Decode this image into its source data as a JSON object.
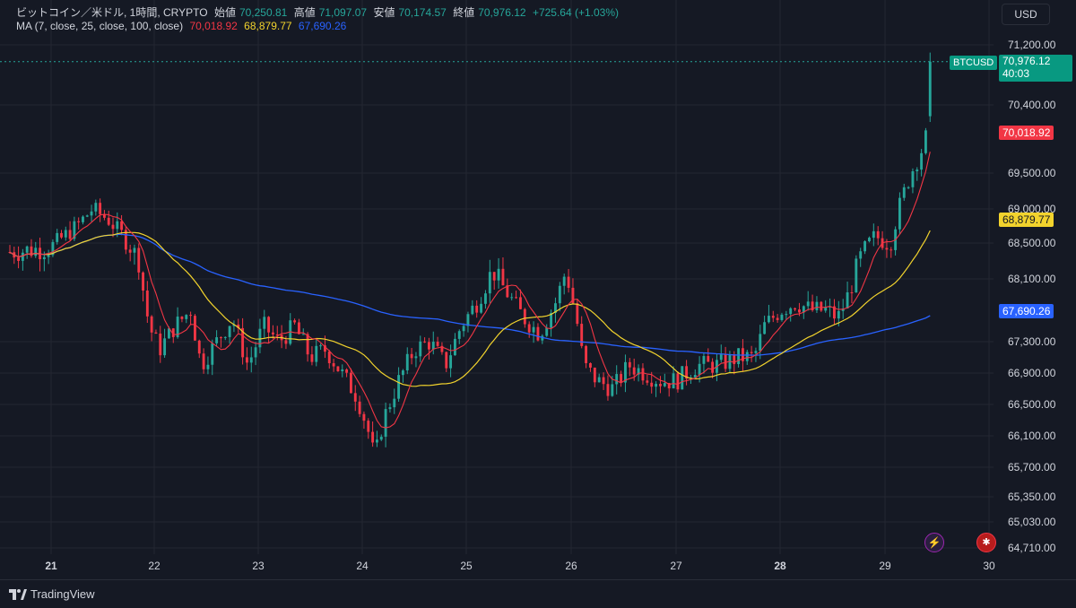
{
  "header": {
    "symbol_name": "ビットコイン／米ドル, 1時間, CRYPTO",
    "open_label": "始値",
    "open_value": "70,250.81",
    "high_label": "高値",
    "high_value": "71,097.07",
    "low_label": "安値",
    "low_value": "70,174.57",
    "close_label": "終値",
    "close_value": "70,976.12",
    "change": "+725.64 (+1.03%)",
    "ma_label": "MA (7, close, 25, close, 100, close)",
    "ma7_value": "70,018.92",
    "ma25_value": "68,879.77",
    "ma100_value": "67,690.26"
  },
  "toolbar": {
    "currency": "USD"
  },
  "tags": {
    "symbol": "BTCUSD",
    "last_price": "70,976.12",
    "countdown": "40:03",
    "ma7": "70,018.92",
    "ma25": "68,879.77",
    "ma100": "67,690.26"
  },
  "footer": {
    "brand": "TradingView"
  },
  "colors": {
    "up": "#26a69a",
    "down": "#f23645",
    "ma7": "#f23645",
    "ma25": "#f2d32d",
    "ma100": "#2962ff",
    "background": "#151924"
  },
  "icons": {
    "event": "lightning-icon",
    "flag": "us-flag-icon"
  },
  "chart_data": {
    "type": "candlestick",
    "title": "ビットコイン／米ドル, 1時間, CRYPTO",
    "y_ticks": [
      71200,
      70400,
      69500,
      69000,
      68500,
      68100,
      67300,
      66900,
      66500,
      66100,
      65700,
      65350,
      65030,
      64710
    ],
    "y_tick_labels": [
      "71,200.00",
      "70,400.00",
      "69,500.00",
      "69,000.00",
      "68,500.00",
      "68,100.00",
      "67,300.00",
      "66,900.00",
      "66,500.00",
      "66,100.00",
      "65,700.00",
      "65,350.00",
      "65,030.00",
      "64,710.00"
    ],
    "x_ticks": [
      "21",
      "22",
      "23",
      "24",
      "25",
      "26",
      "27",
      "28",
      "29",
      "30"
    ],
    "x_tick_bold": [
      true,
      false,
      false,
      false,
      false,
      false,
      false,
      true,
      false,
      false
    ],
    "ylim": [
      64600,
      71500
    ],
    "xlim": [
      20.6,
      30.2
    ],
    "last_price": 70976.12,
    "anchors": [
      [
        20.6,
        68400
      ],
      [
        21.0,
        68450
      ],
      [
        21.25,
        68750
      ],
      [
        21.4,
        69000
      ],
      [
        21.55,
        68850
      ],
      [
        21.7,
        68600
      ],
      [
        21.85,
        68300
      ],
      [
        21.95,
        67500
      ],
      [
        22.05,
        67200
      ],
      [
        22.2,
        67500
      ],
      [
        22.35,
        67700
      ],
      [
        22.45,
        67000
      ],
      [
        22.6,
        67300
      ],
      [
        22.75,
        67600
      ],
      [
        22.9,
        67000
      ],
      [
        23.05,
        67500
      ],
      [
        23.2,
        67300
      ],
      [
        23.35,
        67500
      ],
      [
        23.5,
        67100
      ],
      [
        23.65,
        67200
      ],
      [
        23.8,
        66900
      ],
      [
        23.95,
        66600
      ],
      [
        24.05,
        66200
      ],
      [
        24.12,
        65800
      ],
      [
        24.2,
        66300
      ],
      [
        24.35,
        66800
      ],
      [
        24.5,
        67200
      ],
      [
        24.65,
        67300
      ],
      [
        24.8,
        67000
      ],
      [
        24.95,
        67500
      ],
      [
        25.1,
        67800
      ],
      [
        25.25,
        68200
      ],
      [
        25.4,
        67900
      ],
      [
        25.55,
        67600
      ],
      [
        25.7,
        67400
      ],
      [
        25.85,
        67800
      ],
      [
        25.95,
        68200
      ],
      [
        26.05,
        67600
      ],
      [
        26.12,
        67000
      ],
      [
        26.25,
        66800
      ],
      [
        26.4,
        66700
      ],
      [
        26.55,
        67000
      ],
      [
        26.7,
        66900
      ],
      [
        26.85,
        66800
      ],
      [
        27.0,
        66800
      ],
      [
        27.2,
        67000
      ],
      [
        27.4,
        67000
      ],
      [
        27.6,
        67100
      ],
      [
        27.75,
        67100
      ],
      [
        27.85,
        67500
      ],
      [
        28.0,
        67700
      ],
      [
        28.15,
        67800
      ],
      [
        28.3,
        67700
      ],
      [
        28.45,
        67700
      ],
      [
        28.55,
        67600
      ],
      [
        28.65,
        67900
      ],
      [
        28.75,
        68300
      ],
      [
        28.9,
        68600
      ],
      [
        29.05,
        68500
      ],
      [
        29.15,
        69100
      ],
      [
        29.25,
        69500
      ],
      [
        29.35,
        69800
      ],
      [
        29.45,
        70200
      ],
      [
        29.47,
        70976
      ]
    ]
  }
}
